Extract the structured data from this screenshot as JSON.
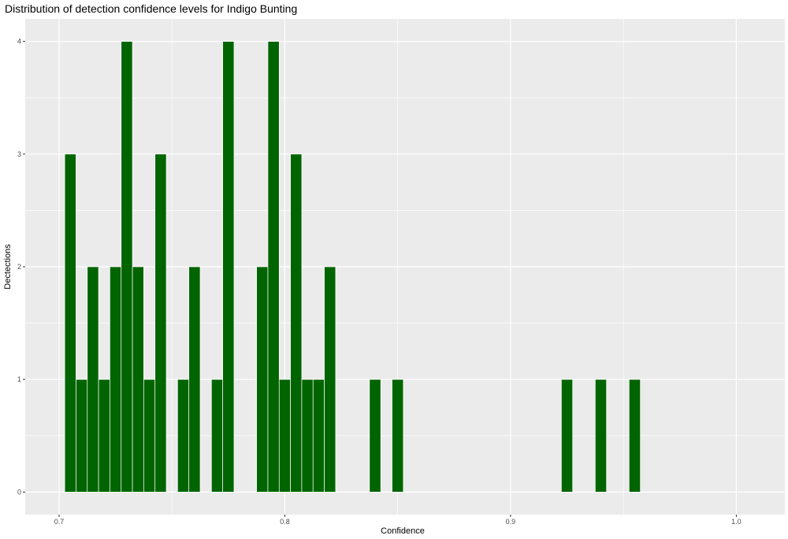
{
  "chart_data": {
    "type": "bar",
    "title": "Distribution of detection confidence levels for Indigo Bunting",
    "xlabel": "Confidence",
    "ylabel": "Dectections",
    "xlim": [
      0.685,
      1.0215
    ],
    "ylim": [
      -0.2,
      4.2
    ],
    "x_ticks": [
      0.7,
      0.8,
      0.9,
      1.0
    ],
    "x_tick_labels": [
      "0.7",
      "0.8",
      "0.9",
      "1.0"
    ],
    "y_ticks": [
      0,
      1,
      2,
      3,
      4
    ],
    "y_tick_labels": [
      "0",
      "1",
      "2",
      "3",
      "4"
    ],
    "bin_width": 0.005,
    "grid": true,
    "bar_color": "#006400",
    "bar_outline": "#ffffff",
    "panel_background": "#ebebeb",
    "grid_color": "#ffffff",
    "bins": [
      {
        "x": 0.705,
        "count": 3
      },
      {
        "x": 0.71,
        "count": 1
      },
      {
        "x": 0.715,
        "count": 2
      },
      {
        "x": 0.72,
        "count": 1
      },
      {
        "x": 0.725,
        "count": 2
      },
      {
        "x": 0.73,
        "count": 4
      },
      {
        "x": 0.735,
        "count": 2
      },
      {
        "x": 0.74,
        "count": 1
      },
      {
        "x": 0.745,
        "count": 3
      },
      {
        "x": 0.755,
        "count": 1
      },
      {
        "x": 0.76,
        "count": 2
      },
      {
        "x": 0.77,
        "count": 1
      },
      {
        "x": 0.775,
        "count": 4
      },
      {
        "x": 0.79,
        "count": 2
      },
      {
        "x": 0.795,
        "count": 4
      },
      {
        "x": 0.8,
        "count": 1
      },
      {
        "x": 0.805,
        "count": 3
      },
      {
        "x": 0.81,
        "count": 1
      },
      {
        "x": 0.815,
        "count": 1
      },
      {
        "x": 0.82,
        "count": 2
      },
      {
        "x": 0.84,
        "count": 1
      },
      {
        "x": 0.85,
        "count": 1
      },
      {
        "x": 0.925,
        "count": 1
      },
      {
        "x": 0.94,
        "count": 1
      },
      {
        "x": 0.955,
        "count": 1
      }
    ]
  }
}
